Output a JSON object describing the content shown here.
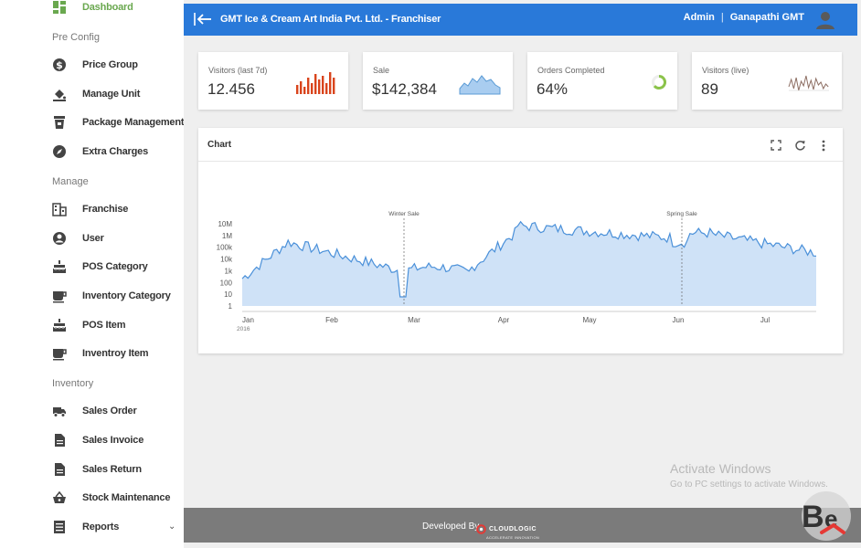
{
  "sidebar": {
    "items": [
      {
        "type": "item",
        "label": "Dashboard",
        "icon": "dashboard-icon",
        "active": true
      },
      {
        "type": "section",
        "label": "Pre Config"
      },
      {
        "type": "item",
        "label": "Price Group",
        "icon": "dollar-icon"
      },
      {
        "type": "item",
        "label": "Manage Unit",
        "icon": "paint-bucket-icon"
      },
      {
        "type": "item",
        "label": "Package Management",
        "icon": "cup-icon"
      },
      {
        "type": "item",
        "label": "Extra Charges",
        "icon": "compass-icon"
      },
      {
        "type": "section",
        "label": "Manage"
      },
      {
        "type": "item",
        "label": "Franchise",
        "icon": "building-icon"
      },
      {
        "type": "item",
        "label": "User",
        "icon": "account-circle-icon"
      },
      {
        "type": "item",
        "label": "POS Category",
        "icon": "cake-icon"
      },
      {
        "type": "item",
        "label": "Inventory Category",
        "icon": "coffee-icon"
      },
      {
        "type": "item",
        "label": "POS Item",
        "icon": "cake-icon"
      },
      {
        "type": "item",
        "label": "Inventroy Item",
        "icon": "coffee-icon"
      },
      {
        "type": "section",
        "label": "Inventory"
      },
      {
        "type": "item",
        "label": "Sales Order",
        "icon": "truck-icon"
      },
      {
        "type": "item",
        "label": "Sales Invoice",
        "icon": "document-icon"
      },
      {
        "type": "item",
        "label": "Sales Return",
        "icon": "document-icon"
      },
      {
        "type": "item",
        "label": "Stock Maintenance",
        "icon": "basket-icon"
      },
      {
        "type": "item",
        "label": "Reports",
        "icon": "list-icon",
        "expandable": true
      }
    ]
  },
  "header": {
    "title": "GMT Ice & Cream Art India Pvt. Ltd. - Franchiser",
    "role": "Admin",
    "separator": "|",
    "user_name": "Ganapathi GMT",
    "color": "#2979d9"
  },
  "stats": [
    {
      "label": "Visitors (last 7d)",
      "value": "12.456",
      "spark": "bar",
      "color": "#d9441c"
    },
    {
      "label": "Sale",
      "value": "$142,384",
      "spark": "area",
      "color": "#5b9bd5"
    },
    {
      "label": "Orders Completed",
      "value": "64%",
      "spark": "donut",
      "percent": 64,
      "color": "#8bc34a"
    },
    {
      "label": "Visitors (live)",
      "value": "89",
      "spark": "line",
      "color": "#8d6e63"
    }
  ],
  "chart_card": {
    "title": "Chart",
    "tools": [
      "fullscreen-icon",
      "refresh-icon",
      "more-vertical-icon"
    ]
  },
  "chart_data": {
    "type": "area",
    "yscale": "log",
    "ytick_labels": [
      "10M",
      "1M",
      "100k",
      "10k",
      "1k",
      "100",
      "10",
      "1"
    ],
    "xtick_labels": [
      {
        "label": "Jan",
        "sub": "2016"
      },
      {
        "label": "Feb"
      },
      {
        "label": "Mar"
      },
      {
        "label": "Apr"
      },
      {
        "label": "May"
      },
      {
        "label": "Jun"
      },
      {
        "label": "Jul"
      }
    ],
    "annotations": [
      "Winter Sale",
      "Spring Sale"
    ],
    "color": "#cfe2f7",
    "line_color": "#4a90d9"
  },
  "watermark": {
    "title": "Activate Windows",
    "subtitle": "Go to PC settings to activate Windows."
  },
  "footer": {
    "text": "Developed By",
    "brand": "CLOUDLOGIC",
    "tagline": "ACCELERATE INNOVATION"
  }
}
